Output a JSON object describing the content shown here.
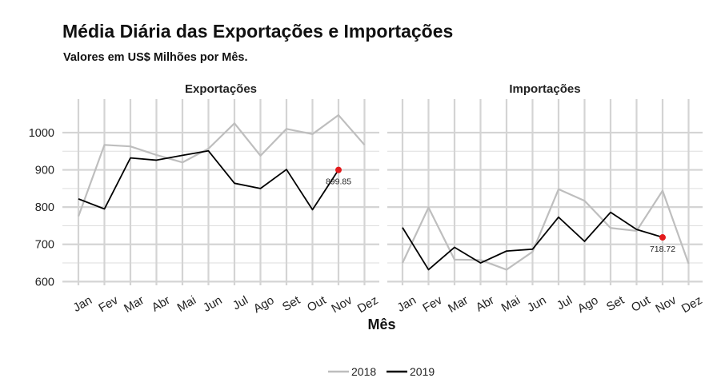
{
  "title": "Média Diária das Exportações e Importações",
  "subtitle": "Valores em US$ Milhões por Mês.",
  "chart_data": {
    "type": "line",
    "xlabel": "Mês",
    "ylabel": "",
    "ylim": [
      590,
      1090
    ],
    "yticks": [
      600,
      700,
      800,
      900,
      1000
    ],
    "categories": [
      "Jan",
      "Fev",
      "Mar",
      "Abr",
      "Mai",
      "Jun",
      "Jul",
      "Ago",
      "Set",
      "Out",
      "Nov",
      "Dez"
    ],
    "grid": true,
    "legend": {
      "position": "bottom",
      "entries": [
        {
          "name": "2018",
          "color": "#bebebe"
        },
        {
          "name": "2019",
          "color": "#000000"
        }
      ]
    },
    "panels": [
      {
        "title": "Exportações",
        "series": [
          {
            "name": "2018",
            "color": "#bebebe",
            "values": [
              775,
              967,
              963,
              940,
              920,
              957,
              1025,
              938,
              1010,
              996,
              1047,
              967
            ]
          },
          {
            "name": "2019",
            "color": "#000000",
            "values": [
              822,
              795,
              932,
              926,
              939,
              951,
              864,
              850,
              901,
              793,
              900,
              null
            ]
          }
        ],
        "highlight": {
          "index": 10,
          "value": 899.85,
          "label": "899.85",
          "color": "#e31a1c"
        }
      },
      {
        "title": "Importações",
        "series": [
          {
            "name": "2018",
            "color": "#bebebe",
            "values": [
              650,
              799,
              659,
              658,
              632,
              680,
              848,
              817,
              744,
              736,
              844,
              648
            ]
          },
          {
            "name": "2019",
            "color": "#000000",
            "values": [
              745,
              632,
              692,
              650,
              682,
              687,
              773,
              708,
              786,
              740,
              719,
              null
            ]
          }
        ],
        "highlight": {
          "index": 10,
          "value": 718.72,
          "label": "718.72",
          "color": "#e31a1c"
        }
      }
    ]
  }
}
